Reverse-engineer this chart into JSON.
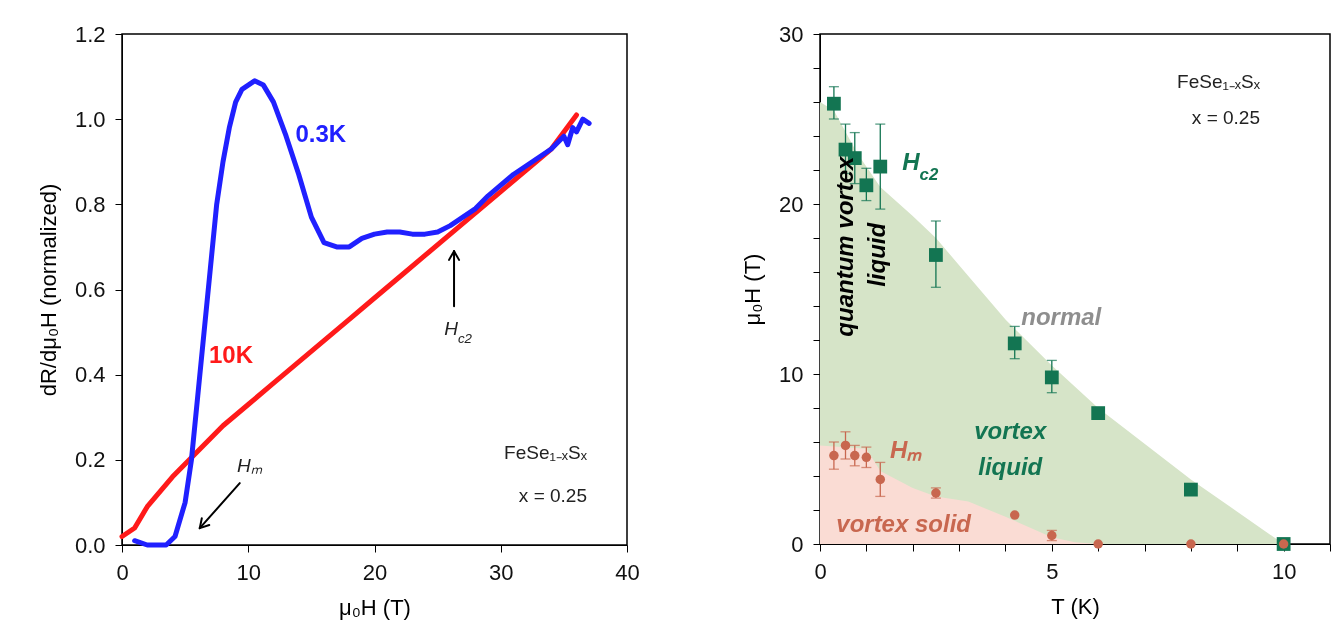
{
  "chart_data": [
    {
      "type": "line",
      "xlabel": "μ₀H (T)",
      "ylabel": "dR/dμ₀H (normalized)",
      "xlim": [
        0,
        40
      ],
      "ylim": [
        0,
        1.2
      ],
      "xticks": [
        0,
        10,
        20,
        30,
        40
      ],
      "yticks": [
        {
          "value": 0,
          "label": "0.0"
        },
        0.2,
        0.4,
        0.6,
        0.8,
        {
          "value": 1,
          "label": "1.0"
        },
        1.2
      ],
      "line_style": "solid",
      "series": [
        {
          "name": "10K",
          "color": "#ff1a1a",
          "x": [
            0,
            1,
            2,
            4,
            6,
            8,
            10,
            12,
            14,
            16,
            18,
            20,
            22,
            24,
            26,
            28,
            30,
            32,
            34,
            36
          ],
          "values": [
            0.02,
            0.04,
            0.09,
            0.16,
            0.22,
            0.28,
            0.33,
            0.38,
            0.43,
            0.48,
            0.53,
            0.58,
            0.63,
            0.68,
            0.73,
            0.78,
            0.83,
            0.88,
            0.93,
            1.01
          ]
        },
        {
          "name": "0.3K",
          "color": "#2020ff",
          "x": [
            1,
            2,
            3.5,
            4.2,
            5,
            5.5,
            6,
            6.5,
            7,
            7.5,
            8,
            8.5,
            9,
            9.5,
            10.5,
            11.2,
            12,
            13,
            14,
            15,
            16,
            17,
            18,
            19,
            20,
            21,
            22,
            23,
            24,
            25,
            26,
            27,
            28,
            29,
            30,
            31,
            32,
            33,
            34,
            35,
            35.3,
            35.7,
            36,
            36.5,
            37
          ],
          "values": [
            0.01,
            0,
            0,
            0.02,
            0.1,
            0.2,
            0.35,
            0.5,
            0.65,
            0.8,
            0.9,
            0.98,
            1.04,
            1.07,
            1.09,
            1.08,
            1.04,
            0.96,
            0.87,
            0.77,
            0.71,
            0.7,
            0.7,
            0.72,
            0.73,
            0.735,
            0.735,
            0.73,
            0.73,
            0.735,
            0.75,
            0.77,
            0.79,
            0.82,
            0.845,
            0.87,
            0.89,
            0.91,
            0.93,
            0.96,
            0.94,
            0.98,
            0.97,
            1.0,
            0.99
          ]
        }
      ],
      "annotations": [
        "FeSe₁₋ₓSₓ",
        "x = 0.25",
        "Hₘ",
        "H$_{c2}$"
      ]
    },
    {
      "type": "scatter",
      "xlabel": "T (K)",
      "ylabel": "μ₀H (T)",
      "xlim": [
        0,
        11
      ],
      "ylim": [
        0,
        30
      ],
      "xticks": [
        0,
        {
          "value": 1,
          "label": null
        },
        {
          "value": 2,
          "label": null
        },
        {
          "value": 3,
          "label": null
        },
        {
          "value": 4,
          "label": null
        },
        5,
        {
          "value": 6,
          "label": null
        },
        {
          "value": 7,
          "label": null
        },
        {
          "value": 8,
          "label": null
        },
        {
          "value": 9,
          "label": null
        },
        10,
        {
          "value": 11,
          "label": null
        }
      ],
      "yticks": [
        0,
        {
          "value": 2,
          "label": null
        },
        {
          "value": 4,
          "label": null
        },
        {
          "value": 6,
          "label": null
        },
        {
          "value": 8,
          "label": null
        },
        10,
        {
          "value": 12,
          "label": null
        },
        {
          "value": 14,
          "label": null
        },
        {
          "value": 16,
          "label": null
        },
        {
          "value": 18,
          "label": null
        },
        20,
        {
          "value": 22,
          "label": null
        },
        {
          "value": 24,
          "label": null
        },
        {
          "value": 26,
          "label": null
        },
        {
          "value": 28,
          "label": null
        },
        30
      ],
      "series": [
        {
          "type": "area",
          "color": "#d6e4c8",
          "x": [
            0,
            0.3,
            0.8,
            1.3,
            2,
            2.5,
            3,
            4,
            5,
            6,
            7,
            8,
            9,
            10
          ],
          "values": [
            26,
            25.5,
            23,
            21,
            19.3,
            18,
            16.4,
            13.2,
            10.5,
            8,
            5.9,
            3.8,
            1.9,
            0
          ]
        },
        {
          "type": "area",
          "color": "#fadcd4",
          "x": [
            0,
            1,
            1.3,
            2,
            2.5,
            3.2,
            4,
            5,
            5.5,
            6,
            10
          ],
          "values": [
            5.8,
            5.6,
            4.3,
            3.3,
            2.8,
            2.5,
            1.6,
            0.4,
            0.1,
            0,
            0
          ]
        },
        {
          "name": "H$_{c2}$",
          "color": "#137552",
          "marker": "square",
          "x": [
            0.3,
            0.55,
            0.75,
            1,
            1.3,
            2.5,
            4.2,
            5,
            6,
            8,
            10
          ],
          "values": [
            25.9,
            23.2,
            22.7,
            21.1,
            22.2,
            17,
            11.8,
            9.8,
            7.7,
            3.2,
            0
          ],
          "errors": [
            [
              25,
              26.9
            ],
            [
              21.8,
              24.7
            ],
            [
              21.2,
              24.2
            ],
            [
              20.2,
              22.1
            ],
            [
              19.7,
              24.7
            ],
            [
              15.1,
              19
            ],
            [
              10.9,
              12.8
            ],
            [
              8.9,
              10.8
            ],
            null,
            null,
            null
          ]
        },
        {
          "name": "Hₘ",
          "color": "#c8674f",
          "marker": "circle",
          "x": [
            0.3,
            0.55,
            0.75,
            1,
            1.3,
            2.5,
            4.2,
            5,
            6,
            8,
            10
          ],
          "values": [
            5.2,
            5.8,
            5.2,
            5.1,
            3.8,
            3,
            1.7,
            0.5,
            0,
            0,
            0
          ],
          "errors": [
            [
              4.4,
              6
            ],
            [
              5,
              6.6
            ],
            [
              4.6,
              5.8
            ],
            [
              4.5,
              5.7
            ],
            [
              2.8,
              4.8
            ],
            [
              2.7,
              3.3
            ],
            null,
            [
              0.2,
              0.8
            ],
            null,
            null,
            null
          ]
        }
      ],
      "annotations": [
        "FeSe₁₋ₓSₓ",
        "x = 0.25",
        "quantum vortex",
        "liquid",
        "normal",
        "vortex liquid",
        "vortex solid"
      ]
    }
  ]
}
